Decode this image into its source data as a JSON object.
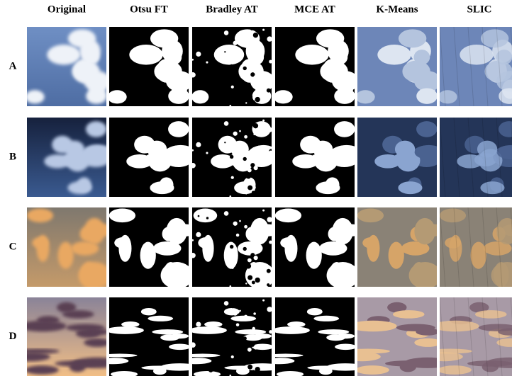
{
  "columns": [
    "Original",
    "Otsu FT",
    "Bradley AT",
    "MCE AT",
    "K-Means",
    "SLIC"
  ],
  "rows": [
    "A",
    "B",
    "C",
    "D"
  ]
}
